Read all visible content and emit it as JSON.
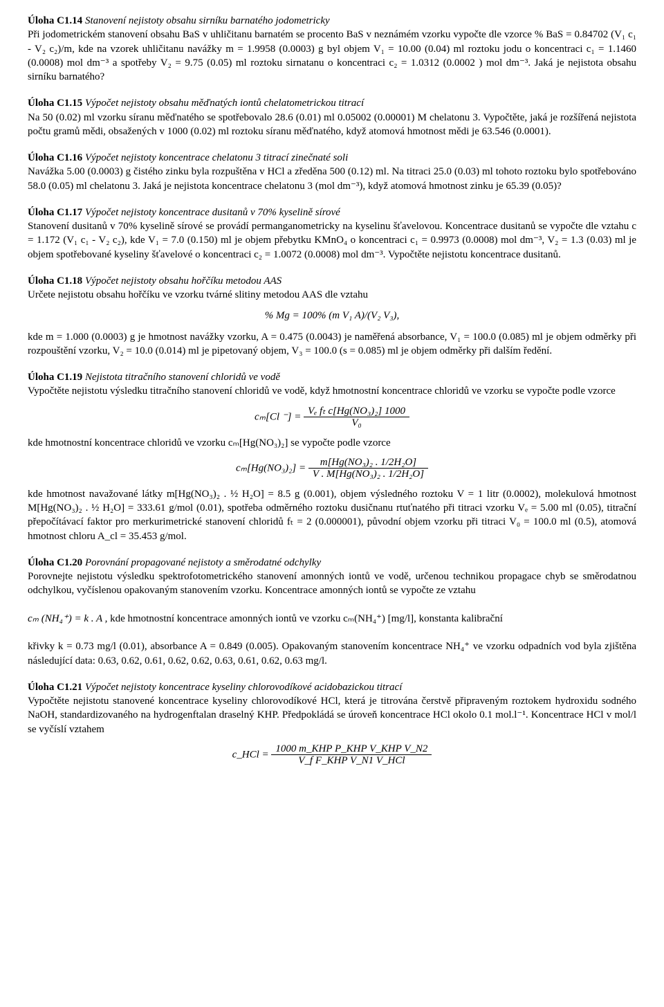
{
  "page": {
    "background_color": "#ffffff",
    "text_color": "#000000",
    "font_family": "Times New Roman",
    "body_fontsize_pt": 11
  },
  "c14": {
    "title": "Úloha C1.14",
    "subtitle": "Stanovení nejistoty obsahu sirníku barnatého jodometricky",
    "p1": "Při jodometrickém stanovení obsahu BaS v uhličitanu barnatém se procento BaS v neznámém vzorku vypočte dle vzorce % BaS = 0.84702 (V₁ c₁ - V₂ c₂)/m, kde na vzorek uhličitanu navážky m = 1.9958 (0.0003) g byl objem V₁ = 10.00 (0.04) ml roztoku jodu o koncentraci c₁ = 1.1460 (0.0008) mol dm⁻³ a spotřeby V₂ = 9.75 (0.05) ml roztoku sirnatanu o koncentraci c₂ = 1.0312 (0.0002 ) mol dm⁻³. Jaká je nejistota obsahu sirníku barnatého?"
  },
  "c15": {
    "title": "Úloha C1.15",
    "subtitle": "Výpočet nejistoty obsahu měďnatých iontů chelatometrickou titrací",
    "p1": "Na 50 (0.02) ml vzorku síranu měďnatého se spotřebovalo 28.6 (0.01) ml 0.05002 (0.00001) M chelatonu 3. Vypočtěte, jaká je rozšířená nejistota počtu gramů mědi, obsažených v 1000 (0.02) ml roztoku síranu měďnatého, když atomová hmotnost mědi je 63.546 (0.0001)."
  },
  "c16": {
    "title": "Úloha C1.16",
    "subtitle": "Výpočet nejistoty koncentrace chelatonu 3 titrací zinečnaté soli",
    "p1": "Navážka 5.00 (0.0003) g čistého zinku byla rozpuštěna v HCl a zředěna 500 (0.12) ml. Na titraci 25.0 (0.03) ml tohoto roztoku bylo spotřebováno 58.0 (0.05) ml chelatonu 3. Jaká je nejistota koncentrace chelatonu 3 (mol dm⁻³), když atomová hmotnost zinku je 65.39 (0.05)?"
  },
  "c17": {
    "title": "Úloha C1.17",
    "subtitle": "Výpočet nejistoty koncentrace dusitanů v 70% kyselině sírové",
    "p1": "Stanovení dusitanů v 70% kyselině sírové se provádí permanganometricky na kyselinu šťavelovou. Koncentrace dusitanů se vypočte dle vztahu c = 1.172 (V₁ c₁ - V₂ c₂), kde V₁ = 7.0 (0.150) ml je objem přebytku KMnO₄ o koncentraci c₁ = 0.9973 (0.0008) mol dm⁻³, V₂ = 1.3 (0.03) ml je objem spotřebované kyseliny šťavelové o koncentraci c₂ = 1.0072 (0.0008) mol dm⁻³. Vypočtěte nejistotu koncentrace dusitanů."
  },
  "c18": {
    "title": "Úloha C1.18",
    "subtitle": "Výpočet nejistoty obsahu hořčíku metodou AAS",
    "p1": "Určete nejistotu obsahu hořčíku ve vzorku tvárné slitiny metodou AAS dle vztahu",
    "formula": "% Mg = 100% (m V₁ A)/(V₂ V₃),",
    "p2": "kde m = 1.000 (0.0003) g je hmotnost navážky vzorku, A = 0.475 (0.0043) je naměřená absorbance, V₁ = 100.0 (0.085) ml je objem odměrky při rozpouštění vzorku, V₂ = 10.0 (0.014) ml je pipetovaný objem, V₃ = 100.0 (s = 0.085) ml je objem odměrky při dalším ředění."
  },
  "c19": {
    "title": "Úloha C1.19",
    "subtitle": "Nejistota titračního stanovení chloridů ve vodě",
    "p1": "Vypočtěte nejistotu výsledku titračního stanovení chloridů ve vodě, když hmotnostní koncentrace chloridů ve vzorku se vypočte podle vzorce",
    "f1_lhs": "cₘ[Cl ⁻] =",
    "f1_num": "Vₑ fₜ c[Hg(NO₃)₂] 1000",
    "f1_den": "V₀",
    "p2": "kde hmotnostní koncentrace chloridů ve vzorku cₘ[Hg(NO₃)₂] se vypočte podle vzorce",
    "f2_lhs": "cₘ[Hg(NO₃)₂] =",
    "f2_num": "m[Hg(NO₃)₂ . 1/2H₂O]",
    "f2_den": "V . M[Hg(NO₃)₂ . 1/2H₂O]",
    "p3": "kde hmotnost navažované látky m[Hg(NO₃)₂ . ½ H₂O] = 8.5 g (0.001), objem výsledného roztoku V = 1 litr (0.0002), molekulová hmotnost M[Hg(NO₃)₂ . ½ H₂O] = 333.61 g/mol (0.01), spotřeba odměrného roztoku dusičnanu rtuťnatého při titraci vzorku Vₑ = 5.00 ml (0.05), titrační přepočítávací faktor pro merkurimetrické stanovení chloridů fₜ = 2 (0.000001), původní objem vzorku při titraci V₀ = 100.0 ml (0.5), atomová hmotnost chloru A_cl = 35.453 g/mol."
  },
  "c20": {
    "title": "Úloha C1.20",
    "subtitle": "Porovnání propagované nejistoty a směrodatné odchylky",
    "p1": "Porovnejte nejistotu výsledku spektrofotometrického stanovení amonných iontů ve vodě, určenou technikou propagace chyb se směrodatnou odchylkou, vyčíslenou opakovaným stanovením vzorku. Koncentrace amonných iontů se vypočte ze vztahu",
    "inline_formula": "cₘ (NH₄⁺) = k . A ,",
    "inline_tail": " kde hmotnostní koncentrace amonných iontů ve vzorku cₘ(NH₄⁺) [mg/l], konstanta kalibrační",
    "p2": "křivky k = 0.73 mg/l (0.01), absorbance A = 0.849 (0.005). Opakovaným stanovením koncentrace NH₄⁺ ve vzorku odpadních vod byla zjištěna následující data: 0.63, 0.62, 0.61, 0.62, 0.62, 0.63, 0.61, 0.62, 0.63 mg/l."
  },
  "c21": {
    "title": "Úloha C1.21",
    "subtitle": "Výpočet nejistoty koncentrace kyseliny chlorovodíkové acidobazickou titrací",
    "p1": "Vypočtěte nejistotu stanovené koncentrace kyseliny chlorovodíkové HCl, která je titrována čerstvě připraveným roztokem hydroxidu sodného NaOH, standardizovaného na hydrogenftalan draselný KHP. Předpokládá se úroveň koncentrace HCl okolo 0.1 mol.l⁻¹. Koncentrace HCl v mol/l se vyčíslí vztahem",
    "f_lhs": "c_HCl =",
    "f_num": "1000 m_KHP P_KHP V_KHP V_N2",
    "f_den": "V_f F_KHP V_N1 V_HCl"
  }
}
